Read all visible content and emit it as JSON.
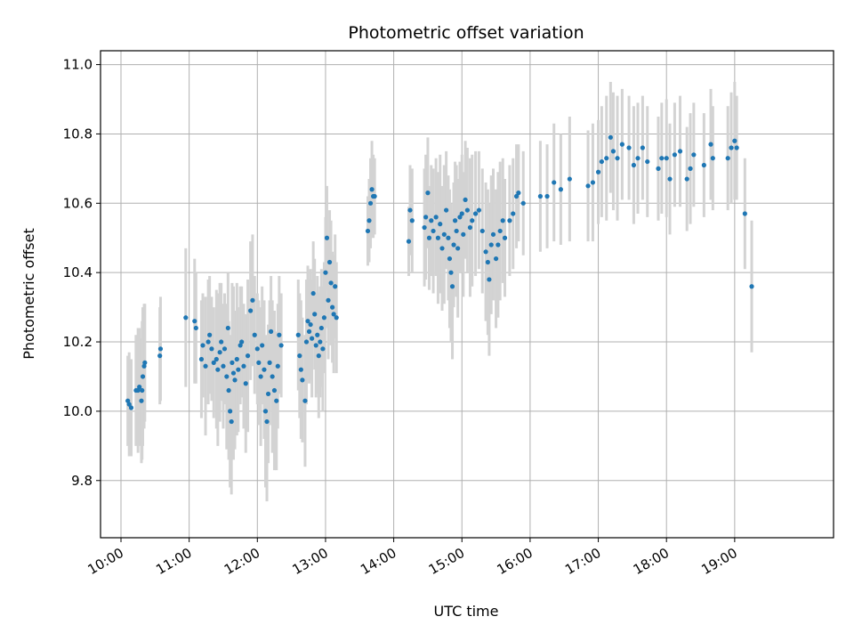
{
  "chart_data": {
    "type": "scatter",
    "title": "Photometric offset variation",
    "xlabel": "UTC time",
    "ylabel": "Photometric offset",
    "x_unit": "hours UTC",
    "xlim": [
      9.7,
      20.45
    ],
    "ylim": [
      9.635,
      11.04
    ],
    "x_ticks": [
      {
        "value": 10,
        "label": "10:00"
      },
      {
        "value": 11,
        "label": "11:00"
      },
      {
        "value": 12,
        "label": "12:00"
      },
      {
        "value": 13,
        "label": "13:00"
      },
      {
        "value": 14,
        "label": "14:00"
      },
      {
        "value": 15,
        "label": "15:00"
      },
      {
        "value": 16,
        "label": "16:00"
      },
      {
        "value": 17,
        "label": "17:00"
      },
      {
        "value": 18,
        "label": "18:00"
      },
      {
        "value": 19,
        "label": "19:00"
      }
    ],
    "y_ticks": [
      {
        "value": 9.8,
        "label": "9.8"
      },
      {
        "value": 10.0,
        "label": "10.0"
      },
      {
        "value": 10.2,
        "label": "10.2"
      },
      {
        "value": 10.4,
        "label": "10.4"
      },
      {
        "value": 10.6,
        "label": "10.6"
      },
      {
        "value": 10.8,
        "label": "10.8"
      },
      {
        "value": 11.0,
        "label": "11.0"
      }
    ],
    "grid": true,
    "colors": {
      "points": "#1f77b4",
      "errorbars": "#d3d3d3",
      "grid": "#b0b0b0"
    },
    "series": [
      {
        "points": [
          [
            10.1,
            10.03,
            0.13
          ],
          [
            10.12,
            10.02,
            0.15
          ],
          [
            10.15,
            10.01,
            0.14
          ],
          [
            10.22,
            10.06,
            0.16
          ],
          [
            10.25,
            10.06,
            0.18
          ],
          [
            10.27,
            10.07,
            0.17
          ],
          [
            10.3,
            10.03,
            0.18
          ],
          [
            10.31,
            10.06,
            0.2
          ],
          [
            10.32,
            10.1,
            0.2
          ],
          [
            10.34,
            10.13,
            0.18
          ],
          [
            10.35,
            10.14,
            0.17
          ],
          [
            10.57,
            10.16,
            0.14
          ],
          [
            10.58,
            10.18,
            0.15
          ],
          [
            10.95,
            10.27,
            0.2
          ],
          [
            11.08,
            10.26,
            0.18
          ],
          [
            11.1,
            10.24,
            0.16
          ],
          [
            11.18,
            10.15,
            0.17
          ],
          [
            11.2,
            10.19,
            0.15
          ],
          [
            11.24,
            10.13,
            0.2
          ],
          [
            11.28,
            10.2,
            0.18
          ],
          [
            11.3,
            10.22,
            0.17
          ],
          [
            11.33,
            10.18,
            0.15
          ],
          [
            11.36,
            10.14,
            0.16
          ],
          [
            11.4,
            10.15,
            0.2
          ],
          [
            11.42,
            10.12,
            0.22
          ],
          [
            11.45,
            10.17,
            0.2
          ],
          [
            11.47,
            10.2,
            0.17
          ],
          [
            11.5,
            10.13,
            0.18
          ],
          [
            11.52,
            10.18,
            0.16
          ],
          [
            11.55,
            10.1,
            0.21
          ],
          [
            11.57,
            10.24,
            0.16
          ],
          [
            11.58,
            10.06,
            0.2
          ],
          [
            11.6,
            10.0,
            0.22
          ],
          [
            11.62,
            9.97,
            0.21
          ],
          [
            11.63,
            10.14,
            0.23
          ],
          [
            11.65,
            10.11,
            0.25
          ],
          [
            11.67,
            10.09,
            0.2
          ],
          [
            11.7,
            10.15,
            0.22
          ],
          [
            11.72,
            10.12,
            0.18
          ],
          [
            11.75,
            10.19,
            0.17
          ],
          [
            11.77,
            10.2,
            0.16
          ],
          [
            11.8,
            10.13,
            0.18
          ],
          [
            11.83,
            10.08,
            0.2
          ],
          [
            11.86,
            10.16,
            0.22
          ],
          [
            11.9,
            10.29,
            0.2
          ],
          [
            11.93,
            10.32,
            0.19
          ],
          [
            11.96,
            10.22,
            0.17
          ],
          [
            12.0,
            10.18,
            0.16
          ],
          [
            12.02,
            10.14,
            0.18
          ],
          [
            12.05,
            10.1,
            0.2
          ],
          [
            12.07,
            10.19,
            0.17
          ],
          [
            12.1,
            10.12,
            0.2
          ],
          [
            12.12,
            10.0,
            0.22
          ],
          [
            12.14,
            9.97,
            0.23
          ],
          [
            12.16,
            10.05,
            0.2
          ],
          [
            12.18,
            10.14,
            0.18
          ],
          [
            12.2,
            10.23,
            0.16
          ],
          [
            12.22,
            10.1,
            0.22
          ],
          [
            12.25,
            10.06,
            0.23
          ],
          [
            12.28,
            10.03,
            0.2
          ],
          [
            12.3,
            10.13,
            0.18
          ],
          [
            12.32,
            10.22,
            0.17
          ],
          [
            12.35,
            10.19,
            0.15
          ],
          [
            12.6,
            10.22,
            0.16
          ],
          [
            12.62,
            10.16,
            0.18
          ],
          [
            12.64,
            10.12,
            0.2
          ],
          [
            12.66,
            10.09,
            0.18
          ],
          [
            12.7,
            10.03,
            0.19
          ],
          [
            12.72,
            10.2,
            0.18
          ],
          [
            12.74,
            10.26,
            0.16
          ],
          [
            12.76,
            10.23,
            0.15
          ],
          [
            12.78,
            10.25,
            0.16
          ],
          [
            12.8,
            10.21,
            0.17
          ],
          [
            12.82,
            10.34,
            0.15
          ],
          [
            12.84,
            10.28,
            0.16
          ],
          [
            12.86,
            10.19,
            0.15
          ],
          [
            12.88,
            10.22,
            0.17
          ],
          [
            12.9,
            10.16,
            0.18
          ],
          [
            12.92,
            10.2,
            0.16
          ],
          [
            12.94,
            10.24,
            0.17
          ],
          [
            12.96,
            10.18,
            0.18
          ],
          [
            12.98,
            10.27,
            0.16
          ],
          [
            13.0,
            10.4,
            0.16
          ],
          [
            13.02,
            10.5,
            0.15
          ],
          [
            13.04,
            10.32,
            0.17
          ],
          [
            13.06,
            10.43,
            0.15
          ],
          [
            13.08,
            10.37,
            0.18
          ],
          [
            13.1,
            10.3,
            0.16
          ],
          [
            13.12,
            10.28,
            0.17
          ],
          [
            13.14,
            10.36,
            0.15
          ],
          [
            13.16,
            10.27,
            0.16
          ],
          [
            13.62,
            10.52,
            0.1
          ],
          [
            13.64,
            10.55,
            0.12
          ],
          [
            13.66,
            10.6,
            0.13
          ],
          [
            13.68,
            10.64,
            0.14
          ],
          [
            13.7,
            10.62,
            0.12
          ],
          [
            13.72,
            10.62,
            0.11
          ],
          [
            14.22,
            10.49,
            0.1
          ],
          [
            14.24,
            10.58,
            0.13
          ],
          [
            14.27,
            10.55,
            0.15
          ],
          [
            14.45,
            10.53,
            0.17
          ],
          [
            14.47,
            10.56,
            0.18
          ],
          [
            14.5,
            10.63,
            0.16
          ],
          [
            14.52,
            10.5,
            0.15
          ],
          [
            14.55,
            10.55,
            0.16
          ],
          [
            14.58,
            10.52,
            0.18
          ],
          [
            14.62,
            10.56,
            0.17
          ],
          [
            14.65,
            10.5,
            0.19
          ],
          [
            14.68,
            10.54,
            0.2
          ],
          [
            14.71,
            10.47,
            0.18
          ],
          [
            14.74,
            10.51,
            0.2
          ],
          [
            14.77,
            10.58,
            0.17
          ],
          [
            14.8,
            10.5,
            0.18
          ],
          [
            14.82,
            10.44,
            0.2
          ],
          [
            14.84,
            10.4,
            0.2
          ],
          [
            14.86,
            10.36,
            0.21
          ],
          [
            14.88,
            10.48,
            0.18
          ],
          [
            14.9,
            10.55,
            0.17
          ],
          [
            14.92,
            10.52,
            0.19
          ],
          [
            14.94,
            10.47,
            0.2
          ],
          [
            14.97,
            10.56,
            0.16
          ],
          [
            15.0,
            10.57,
            0.17
          ],
          [
            15.02,
            10.51,
            0.18
          ],
          [
            15.05,
            10.61,
            0.17
          ],
          [
            15.08,
            10.58,
            0.18
          ],
          [
            15.12,
            10.53,
            0.2
          ],
          [
            15.15,
            10.55,
            0.19
          ],
          [
            15.2,
            10.57,
            0.18
          ],
          [
            15.25,
            10.58,
            0.17
          ],
          [
            15.3,
            10.52,
            0.18
          ],
          [
            15.35,
            10.46,
            0.2
          ],
          [
            15.38,
            10.43,
            0.21
          ],
          [
            15.4,
            10.38,
            0.22
          ],
          [
            15.43,
            10.48,
            0.2
          ],
          [
            15.46,
            10.51,
            0.19
          ],
          [
            15.5,
            10.44,
            0.2
          ],
          [
            15.53,
            10.48,
            0.21
          ],
          [
            15.56,
            10.52,
            0.2
          ],
          [
            15.6,
            10.55,
            0.18
          ],
          [
            15.63,
            10.5,
            0.17
          ],
          [
            15.7,
            10.55,
            0.16
          ],
          [
            15.75,
            10.57,
            0.16
          ],
          [
            15.8,
            10.62,
            0.15
          ],
          [
            15.83,
            10.63,
            0.14
          ],
          [
            15.9,
            10.6,
            0.15
          ],
          [
            16.15,
            10.62,
            0.16
          ],
          [
            16.25,
            10.62,
            0.15
          ],
          [
            16.35,
            10.66,
            0.17
          ],
          [
            16.45,
            10.64,
            0.16
          ],
          [
            16.58,
            10.67,
            0.18
          ],
          [
            16.85,
            10.65,
            0.16
          ],
          [
            16.92,
            10.66,
            0.17
          ],
          [
            17.0,
            10.69,
            0.15
          ],
          [
            17.05,
            10.72,
            0.16
          ],
          [
            17.12,
            10.73,
            0.18
          ],
          [
            17.18,
            10.79,
            0.16
          ],
          [
            17.22,
            10.75,
            0.17
          ],
          [
            17.28,
            10.73,
            0.18
          ],
          [
            17.35,
            10.77,
            0.16
          ],
          [
            17.45,
            10.76,
            0.15
          ],
          [
            17.52,
            10.71,
            0.17
          ],
          [
            17.58,
            10.73,
            0.16
          ],
          [
            17.65,
            10.76,
            0.15
          ],
          [
            17.72,
            10.72,
            0.16
          ],
          [
            17.88,
            10.7,
            0.15
          ],
          [
            17.93,
            10.73,
            0.16
          ],
          [
            18.0,
            10.73,
            0.17
          ],
          [
            18.05,
            10.67,
            0.16
          ],
          [
            18.12,
            10.74,
            0.15
          ],
          [
            18.2,
            10.75,
            0.16
          ],
          [
            18.3,
            10.67,
            0.15
          ],
          [
            18.35,
            10.7,
            0.16
          ],
          [
            18.4,
            10.74,
            0.15
          ],
          [
            18.55,
            10.71,
            0.15
          ],
          [
            18.65,
            10.77,
            0.16
          ],
          [
            18.68,
            10.73,
            0.15
          ],
          [
            18.9,
            10.73,
            0.15
          ],
          [
            18.95,
            10.76,
            0.16
          ],
          [
            19.0,
            10.78,
            0.17
          ],
          [
            19.03,
            10.76,
            0.15
          ],
          [
            19.15,
            10.57,
            0.16
          ],
          [
            19.25,
            10.36,
            0.19
          ]
        ]
      }
    ]
  }
}
